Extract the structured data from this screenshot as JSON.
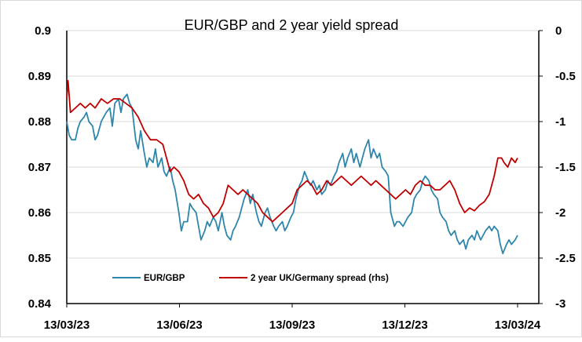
{
  "chart_data": {
    "type": "line",
    "title": "EUR/GBP and 2 year yield spread",
    "x_tick_labels": [
      "13/03/23",
      "13/06/23",
      "13/09/23",
      "13/12/23",
      "13/03/24"
    ],
    "x_range": [
      "2023-03-13",
      "2024-03-13"
    ],
    "y_left": {
      "range": [
        0.84,
        0.9
      ],
      "ticks": [
        "0.84",
        "0.85",
        "0.86",
        "0.87",
        "0.88",
        "0.89",
        "0.9"
      ]
    },
    "y_right": {
      "range": [
        -3,
        0
      ],
      "ticks": [
        "-3",
        "-2.5",
        "-2",
        "-1.5",
        "-1",
        "-0.5",
        "0"
      ]
    },
    "grid": true,
    "legend": "bottom-center",
    "series": [
      {
        "name": "EUR/GBP",
        "axis": "left",
        "color": "#2e86ab",
        "points": [
          [
            "2023-03-13",
            0.88
          ],
          [
            "2023-03-15",
            0.877
          ],
          [
            "2023-03-17",
            0.876
          ],
          [
            "2023-03-20",
            0.876
          ],
          [
            "2023-03-22",
            0.8785
          ],
          [
            "2023-03-24",
            0.88
          ],
          [
            "2023-03-27",
            0.881
          ],
          [
            "2023-03-29",
            0.882
          ],
          [
            "2023-03-31",
            0.88
          ],
          [
            "2023-04-03",
            0.879
          ],
          [
            "2023-04-05",
            0.876
          ],
          [
            "2023-04-07",
            0.877
          ],
          [
            "2023-04-10",
            0.88
          ],
          [
            "2023-04-12",
            0.881
          ],
          [
            "2023-04-14",
            0.882
          ],
          [
            "2023-04-17",
            0.883
          ],
          [
            "2023-04-19",
            0.879
          ],
          [
            "2023-04-21",
            0.884
          ],
          [
            "2023-04-24",
            0.885
          ],
          [
            "2023-04-26",
            0.882
          ],
          [
            "2023-04-28",
            0.885
          ],
          [
            "2023-05-01",
            0.886
          ],
          [
            "2023-05-03",
            0.884
          ],
          [
            "2023-05-05",
            0.883
          ],
          [
            "2023-05-08",
            0.876
          ],
          [
            "2023-05-10",
            0.874
          ],
          [
            "2023-05-12",
            0.878
          ],
          [
            "2023-05-15",
            0.873
          ],
          [
            "2023-05-17",
            0.87
          ],
          [
            "2023-05-19",
            0.872
          ],
          [
            "2023-05-22",
            0.871
          ],
          [
            "2023-05-24",
            0.874
          ],
          [
            "2023-05-26",
            0.87
          ],
          [
            "2023-05-29",
            0.872
          ],
          [
            "2023-05-31",
            0.869
          ],
          [
            "2023-06-02",
            0.868
          ],
          [
            "2023-06-05",
            0.87
          ],
          [
            "2023-06-07",
            0.867
          ],
          [
            "2023-06-09",
            0.865
          ],
          [
            "2023-06-12",
            0.86
          ],
          [
            "2023-06-14",
            0.856
          ],
          [
            "2023-06-16",
            0.858
          ],
          [
            "2023-06-19",
            0.858
          ],
          [
            "2023-06-21",
            0.862
          ],
          [
            "2023-06-23",
            0.861
          ],
          [
            "2023-06-26",
            0.86
          ],
          [
            "2023-06-28",
            0.857
          ],
          [
            "2023-06-30",
            0.854
          ],
          [
            "2023-07-03",
            0.856
          ],
          [
            "2023-07-05",
            0.858
          ],
          [
            "2023-07-07",
            0.857
          ],
          [
            "2023-07-10",
            0.859
          ],
          [
            "2023-07-12",
            0.858
          ],
          [
            "2023-07-14",
            0.856
          ],
          [
            "2023-07-17",
            0.86
          ],
          [
            "2023-07-19",
            0.857
          ],
          [
            "2023-07-21",
            0.855
          ],
          [
            "2023-07-24",
            0.854
          ],
          [
            "2023-07-26",
            0.856
          ],
          [
            "2023-07-28",
            0.857
          ],
          [
            "2023-07-31",
            0.859
          ],
          [
            "2023-08-02",
            0.861
          ],
          [
            "2023-08-04",
            0.863
          ],
          [
            "2023-08-07",
            0.865
          ],
          [
            "2023-08-09",
            0.862
          ],
          [
            "2023-08-11",
            0.864
          ],
          [
            "2023-08-14",
            0.86
          ],
          [
            "2023-08-16",
            0.858
          ],
          [
            "2023-08-18",
            0.857
          ],
          [
            "2023-08-21",
            0.86
          ],
          [
            "2023-08-23",
            0.861
          ],
          [
            "2023-08-25",
            0.859
          ],
          [
            "2023-08-28",
            0.857
          ],
          [
            "2023-08-30",
            0.856
          ],
          [
            "2023-09-01",
            0.857
          ],
          [
            "2023-09-04",
            0.858
          ],
          [
            "2023-09-06",
            0.856
          ],
          [
            "2023-09-08",
            0.857
          ],
          [
            "2023-09-11",
            0.859
          ],
          [
            "2023-09-13",
            0.86
          ],
          [
            "2023-09-15",
            0.863
          ],
          [
            "2023-09-18",
            0.866
          ],
          [
            "2023-09-20",
            0.867
          ],
          [
            "2023-09-22",
            0.869
          ],
          [
            "2023-09-25",
            0.867
          ],
          [
            "2023-09-27",
            0.866
          ],
          [
            "2023-09-29",
            0.867
          ],
          [
            "2023-10-02",
            0.865
          ],
          [
            "2023-10-04",
            0.866
          ],
          [
            "2023-10-06",
            0.864
          ],
          [
            "2023-10-09",
            0.865
          ],
          [
            "2023-10-11",
            0.867
          ],
          [
            "2023-10-13",
            0.866
          ],
          [
            "2023-10-16",
            0.868
          ],
          [
            "2023-10-18",
            0.869
          ],
          [
            "2023-10-20",
            0.871
          ],
          [
            "2023-10-23",
            0.873
          ],
          [
            "2023-10-25",
            0.87
          ],
          [
            "2023-10-27",
            0.872
          ],
          [
            "2023-10-30",
            0.874
          ],
          [
            "2023-11-01",
            0.871
          ],
          [
            "2023-11-03",
            0.873
          ],
          [
            "2023-11-06",
            0.87
          ],
          [
            "2023-11-08",
            0.872
          ],
          [
            "2023-11-10",
            0.874
          ],
          [
            "2023-11-13",
            0.876
          ],
          [
            "2023-11-15",
            0.872
          ],
          [
            "2023-11-17",
            0.874
          ],
          [
            "2023-11-20",
            0.872
          ],
          [
            "2023-11-22",
            0.873
          ],
          [
            "2023-11-24",
            0.87
          ],
          [
            "2023-11-27",
            0.869
          ],
          [
            "2023-11-29",
            0.868
          ],
          [
            "2023-12-01",
            0.86
          ],
          [
            "2023-12-04",
            0.857
          ],
          [
            "2023-12-06",
            0.858
          ],
          [
            "2023-12-08",
            0.858
          ],
          [
            "2023-12-11",
            0.857
          ],
          [
            "2023-12-13",
            0.858
          ],
          [
            "2023-12-15",
            0.859
          ],
          [
            "2023-12-18",
            0.86
          ],
          [
            "2023-12-20",
            0.863
          ],
          [
            "2023-12-22",
            0.864
          ],
          [
            "2023-12-25",
            0.865
          ],
          [
            "2023-12-27",
            0.867
          ],
          [
            "2023-12-29",
            0.868
          ],
          [
            "2024-01-01",
            0.867
          ],
          [
            "2024-01-03",
            0.865
          ],
          [
            "2024-01-05",
            0.864
          ],
          [
            "2024-01-08",
            0.863
          ],
          [
            "2024-01-10",
            0.86
          ],
          [
            "2024-01-12",
            0.859
          ],
          [
            "2024-01-15",
            0.858
          ],
          [
            "2024-01-17",
            0.856
          ],
          [
            "2024-01-19",
            0.855
          ],
          [
            "2024-01-22",
            0.856
          ],
          [
            "2024-01-24",
            0.854
          ],
          [
            "2024-01-26",
            0.853
          ],
          [
            "2024-01-29",
            0.854
          ],
          [
            "2024-01-31",
            0.852
          ],
          [
            "2024-02-02",
            0.854
          ],
          [
            "2024-02-05",
            0.855
          ],
          [
            "2024-02-07",
            0.854
          ],
          [
            "2024-02-09",
            0.856
          ],
          [
            "2024-02-12",
            0.854
          ],
          [
            "2024-02-14",
            0.855
          ],
          [
            "2024-02-16",
            0.856
          ],
          [
            "2024-02-19",
            0.857
          ],
          [
            "2024-02-21",
            0.856
          ],
          [
            "2024-02-23",
            0.857
          ],
          [
            "2024-02-26",
            0.856
          ],
          [
            "2024-02-28",
            0.853
          ],
          [
            "2024-03-01",
            0.851
          ],
          [
            "2024-03-04",
            0.853
          ],
          [
            "2024-03-06",
            0.854
          ],
          [
            "2024-03-08",
            0.853
          ],
          [
            "2024-03-11",
            0.854
          ],
          [
            "2024-03-13",
            0.855
          ]
        ]
      },
      {
        "name": "2 year UK/Germany spread (rhs)",
        "axis": "right",
        "color": "#c00000",
        "points": [
          [
            "2023-03-13",
            -0.75
          ],
          [
            "2023-03-14",
            -0.55
          ],
          [
            "2023-03-16",
            -0.9
          ],
          [
            "2023-03-20",
            -0.85
          ],
          [
            "2023-03-24",
            -0.8
          ],
          [
            "2023-03-28",
            -0.85
          ],
          [
            "2023-04-01",
            -0.8
          ],
          [
            "2023-04-05",
            -0.85
          ],
          [
            "2023-04-10",
            -0.75
          ],
          [
            "2023-04-15",
            -0.8
          ],
          [
            "2023-04-20",
            -0.75
          ],
          [
            "2023-04-25",
            -0.75
          ],
          [
            "2023-04-30",
            -0.8
          ],
          [
            "2023-05-05",
            -0.85
          ],
          [
            "2023-05-10",
            -0.95
          ],
          [
            "2023-05-15",
            -1.1
          ],
          [
            "2023-05-20",
            -1.2
          ],
          [
            "2023-05-25",
            -1.2
          ],
          [
            "2023-05-30",
            -1.25
          ],
          [
            "2023-06-02",
            -1.4
          ],
          [
            "2023-06-05",
            -1.55
          ],
          [
            "2023-06-08",
            -1.5
          ],
          [
            "2023-06-12",
            -1.55
          ],
          [
            "2023-06-16",
            -1.65
          ],
          [
            "2023-06-20",
            -1.8
          ],
          [
            "2023-06-24",
            -1.85
          ],
          [
            "2023-06-28",
            -1.8
          ],
          [
            "2023-07-02",
            -1.9
          ],
          [
            "2023-07-06",
            -1.95
          ],
          [
            "2023-07-10",
            -2.05
          ],
          [
            "2023-07-14",
            -2.0
          ],
          [
            "2023-07-18",
            -1.9
          ],
          [
            "2023-07-22",
            -1.7
          ],
          [
            "2023-07-26",
            -1.75
          ],
          [
            "2023-07-30",
            -1.8
          ],
          [
            "2023-08-03",
            -1.75
          ],
          [
            "2023-08-07",
            -1.8
          ],
          [
            "2023-08-11",
            -1.85
          ],
          [
            "2023-08-15",
            -1.9
          ],
          [
            "2023-08-19",
            -2.0
          ],
          [
            "2023-08-23",
            -2.05
          ],
          [
            "2023-08-27",
            -2.1
          ],
          [
            "2023-08-31",
            -2.05
          ],
          [
            "2023-09-04",
            -2.0
          ],
          [
            "2023-09-08",
            -1.95
          ],
          [
            "2023-09-12",
            -1.9
          ],
          [
            "2023-09-16",
            -1.75
          ],
          [
            "2023-09-20",
            -1.7
          ],
          [
            "2023-09-24",
            -1.65
          ],
          [
            "2023-09-28",
            -1.7
          ],
          [
            "2023-10-02",
            -1.8
          ],
          [
            "2023-10-06",
            -1.75
          ],
          [
            "2023-10-10",
            -1.65
          ],
          [
            "2023-10-14",
            -1.7
          ],
          [
            "2023-10-18",
            -1.65
          ],
          [
            "2023-10-22",
            -1.6
          ],
          [
            "2023-10-26",
            -1.65
          ],
          [
            "2023-10-30",
            -1.7
          ],
          [
            "2023-11-03",
            -1.65
          ],
          [
            "2023-11-07",
            -1.6
          ],
          [
            "2023-11-11",
            -1.65
          ],
          [
            "2023-11-15",
            -1.7
          ],
          [
            "2023-11-19",
            -1.65
          ],
          [
            "2023-11-23",
            -1.7
          ],
          [
            "2023-11-27",
            -1.75
          ],
          [
            "2023-12-01",
            -1.8
          ],
          [
            "2023-12-05",
            -1.85
          ],
          [
            "2023-12-09",
            -1.8
          ],
          [
            "2023-12-13",
            -1.75
          ],
          [
            "2023-12-17",
            -1.8
          ],
          [
            "2023-12-21",
            -1.7
          ],
          [
            "2023-12-25",
            -1.65
          ],
          [
            "2023-12-29",
            -1.7
          ],
          [
            "2024-01-02",
            -1.7
          ],
          [
            "2024-01-06",
            -1.75
          ],
          [
            "2024-01-10",
            -1.75
          ],
          [
            "2024-01-14",
            -1.7
          ],
          [
            "2024-01-18",
            -1.65
          ],
          [
            "2024-01-22",
            -1.75
          ],
          [
            "2024-01-26",
            -1.9
          ],
          [
            "2024-01-30",
            -2.0
          ],
          [
            "2024-02-03",
            -1.95
          ],
          [
            "2024-02-07",
            -1.98
          ],
          [
            "2024-02-11",
            -1.92
          ],
          [
            "2024-02-15",
            -1.88
          ],
          [
            "2024-02-19",
            -1.8
          ],
          [
            "2024-02-23",
            -1.6
          ],
          [
            "2024-02-26",
            -1.4
          ],
          [
            "2024-02-29",
            -1.4
          ],
          [
            "2024-03-02",
            -1.45
          ],
          [
            "2024-03-05",
            -1.5
          ],
          [
            "2024-03-08",
            -1.4
          ],
          [
            "2024-03-11",
            -1.45
          ],
          [
            "2024-03-13",
            -1.4
          ]
        ]
      }
    ]
  }
}
